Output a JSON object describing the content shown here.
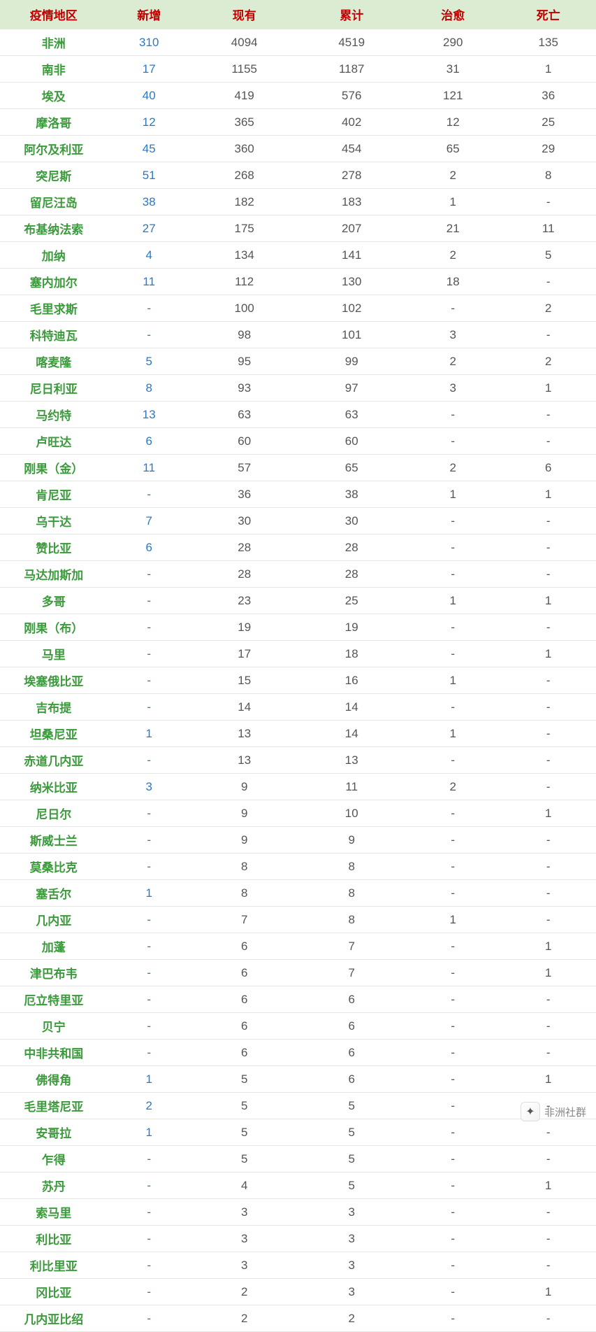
{
  "table": {
    "header_bg": "#dcecd3",
    "header_color": "#c00000",
    "region_color": "#3b9a3b",
    "new_color": "#2b78c5",
    "value_color": "#555555",
    "border_color": "#e5e5e5",
    "columns": [
      "疫情地区",
      "新增",
      "现有",
      "累计",
      "治愈",
      "死亡"
    ],
    "rows": [
      {
        "region": "非洲",
        "new": "310",
        "existing": "4094",
        "total": "4519",
        "cured": "290",
        "death": "135"
      },
      {
        "region": "南非",
        "new": "17",
        "existing": "1155",
        "total": "1187",
        "cured": "31",
        "death": "1"
      },
      {
        "region": "埃及",
        "new": "40",
        "existing": "419",
        "total": "576",
        "cured": "121",
        "death": "36"
      },
      {
        "region": "摩洛哥",
        "new": "12",
        "existing": "365",
        "total": "402",
        "cured": "12",
        "death": "25"
      },
      {
        "region": "阿尔及利亚",
        "new": "45",
        "existing": "360",
        "total": "454",
        "cured": "65",
        "death": "29"
      },
      {
        "region": "突尼斯",
        "new": "51",
        "existing": "268",
        "total": "278",
        "cured": "2",
        "death": "8"
      },
      {
        "region": "留尼汪岛",
        "new": "38",
        "existing": "182",
        "total": "183",
        "cured": "1",
        "death": "-"
      },
      {
        "region": "布基纳法索",
        "new": "27",
        "existing": "175",
        "total": "207",
        "cured": "21",
        "death": "11"
      },
      {
        "region": "加纳",
        "new": "4",
        "existing": "134",
        "total": "141",
        "cured": "2",
        "death": "5"
      },
      {
        "region": "塞内加尔",
        "new": "11",
        "existing": "112",
        "total": "130",
        "cured": "18",
        "death": "-"
      },
      {
        "region": "毛里求斯",
        "new": "-",
        "existing": "100",
        "total": "102",
        "cured": "-",
        "death": "2"
      },
      {
        "region": "科特迪瓦",
        "new": "-",
        "existing": "98",
        "total": "101",
        "cured": "3",
        "death": "-"
      },
      {
        "region": "喀麦隆",
        "new": "5",
        "existing": "95",
        "total": "99",
        "cured": "2",
        "death": "2"
      },
      {
        "region": "尼日利亚",
        "new": "8",
        "existing": "93",
        "total": "97",
        "cured": "3",
        "death": "1"
      },
      {
        "region": "马约特",
        "new": "13",
        "existing": "63",
        "total": "63",
        "cured": "-",
        "death": "-"
      },
      {
        "region": "卢旺达",
        "new": "6",
        "existing": "60",
        "total": "60",
        "cured": "-",
        "death": "-"
      },
      {
        "region": "刚果（金）",
        "new": "11",
        "existing": "57",
        "total": "65",
        "cured": "2",
        "death": "6"
      },
      {
        "region": "肯尼亚",
        "new": "-",
        "existing": "36",
        "total": "38",
        "cured": "1",
        "death": "1"
      },
      {
        "region": "乌干达",
        "new": "7",
        "existing": "30",
        "total": "30",
        "cured": "-",
        "death": "-"
      },
      {
        "region": "赞比亚",
        "new": "6",
        "existing": "28",
        "total": "28",
        "cured": "-",
        "death": "-"
      },
      {
        "region": "马达加斯加",
        "new": "-",
        "existing": "28",
        "total": "28",
        "cured": "-",
        "death": "-"
      },
      {
        "region": "多哥",
        "new": "-",
        "existing": "23",
        "total": "25",
        "cured": "1",
        "death": "1"
      },
      {
        "region": "刚果（布）",
        "new": "-",
        "existing": "19",
        "total": "19",
        "cured": "-",
        "death": "-"
      },
      {
        "region": "马里",
        "new": "-",
        "existing": "17",
        "total": "18",
        "cured": "-",
        "death": "1"
      },
      {
        "region": "埃塞俄比亚",
        "new": "-",
        "existing": "15",
        "total": "16",
        "cured": "1",
        "death": "-"
      },
      {
        "region": "吉布提",
        "new": "-",
        "existing": "14",
        "total": "14",
        "cured": "-",
        "death": "-"
      },
      {
        "region": "坦桑尼亚",
        "new": "1",
        "existing": "13",
        "total": "14",
        "cured": "1",
        "death": "-"
      },
      {
        "region": "赤道几内亚",
        "new": "-",
        "existing": "13",
        "total": "13",
        "cured": "-",
        "death": "-"
      },
      {
        "region": "纳米比亚",
        "new": "3",
        "existing": "9",
        "total": "11",
        "cured": "2",
        "death": "-"
      },
      {
        "region": "尼日尔",
        "new": "-",
        "existing": "9",
        "total": "10",
        "cured": "-",
        "death": "1"
      },
      {
        "region": "斯威士兰",
        "new": "-",
        "existing": "9",
        "total": "9",
        "cured": "-",
        "death": "-"
      },
      {
        "region": "莫桑比克",
        "new": "-",
        "existing": "8",
        "total": "8",
        "cured": "-",
        "death": "-"
      },
      {
        "region": "塞舌尔",
        "new": "1",
        "existing": "8",
        "total": "8",
        "cured": "-",
        "death": "-"
      },
      {
        "region": "几内亚",
        "new": "-",
        "existing": "7",
        "total": "8",
        "cured": "1",
        "death": "-"
      },
      {
        "region": "加蓬",
        "new": "-",
        "existing": "6",
        "total": "7",
        "cured": "-",
        "death": "1"
      },
      {
        "region": "津巴布韦",
        "new": "-",
        "existing": "6",
        "total": "7",
        "cured": "-",
        "death": "1"
      },
      {
        "region": "厄立特里亚",
        "new": "-",
        "existing": "6",
        "total": "6",
        "cured": "-",
        "death": "-"
      },
      {
        "region": "贝宁",
        "new": "-",
        "existing": "6",
        "total": "6",
        "cured": "-",
        "death": "-"
      },
      {
        "region": "中非共和国",
        "new": "-",
        "existing": "6",
        "total": "6",
        "cured": "-",
        "death": "-"
      },
      {
        "region": "佛得角",
        "new": "1",
        "existing": "5",
        "total": "6",
        "cured": "-",
        "death": "1"
      },
      {
        "region": "毛里塔尼亚",
        "new": "2",
        "existing": "5",
        "total": "5",
        "cured": "-",
        "death": "-"
      },
      {
        "region": "安哥拉",
        "new": "1",
        "existing": "5",
        "total": "5",
        "cured": "-",
        "death": "-"
      },
      {
        "region": "乍得",
        "new": "-",
        "existing": "5",
        "total": "5",
        "cured": "-",
        "death": "-"
      },
      {
        "region": "苏丹",
        "new": "-",
        "existing": "4",
        "total": "5",
        "cured": "-",
        "death": "1"
      },
      {
        "region": "索马里",
        "new": "-",
        "existing": "3",
        "total": "3",
        "cured": "-",
        "death": "-"
      },
      {
        "region": "利比亚",
        "new": "-",
        "existing": "3",
        "total": "3",
        "cured": "-",
        "death": "-"
      },
      {
        "region": "利比里亚",
        "new": "-",
        "existing": "3",
        "total": "3",
        "cured": "-",
        "death": "-"
      },
      {
        "region": "冈比亚",
        "new": "-",
        "existing": "2",
        "total": "3",
        "cured": "-",
        "death": "1"
      },
      {
        "region": "几内亚比绍",
        "new": "-",
        "existing": "2",
        "total": "2",
        "cured": "-",
        "death": "-"
      }
    ]
  },
  "brand": {
    "label": "非洲社群",
    "icon_glyph": "✦"
  }
}
